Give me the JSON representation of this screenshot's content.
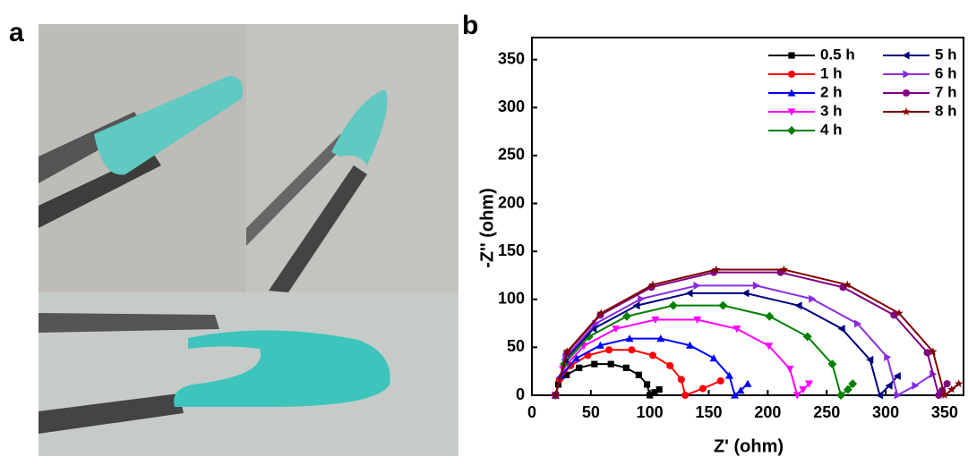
{
  "labels": [
    "a",
    "b"
  ],
  "chart_data": {
    "type": "line",
    "xlabel": "Z' (ohm)",
    "ylabel": "-Z'' (ohm)",
    "xlim": [
      0,
      366
    ],
    "ylim": [
      0,
      373
    ],
    "xticks": [
      0,
      50,
      100,
      150,
      200,
      250,
      300,
      350
    ],
    "yticks": [
      0,
      50,
      100,
      150,
      200,
      250,
      300,
      350
    ],
    "legend": "upper right",
    "series": [
      {
        "name": "0.5 h",
        "color": "#000000",
        "marker": "square",
        "x": [
          20,
          22.4,
          29.4,
          40,
          53,
          67,
          80,
          90.6,
          97.6,
          100,
          104,
          108
        ],
        "values": [
          0,
          11.3,
          21.2,
          28.6,
          32.5,
          32.5,
          28.6,
          21.2,
          11.3,
          0,
          3,
          6
        ]
      },
      {
        "name": "1 h",
        "color": "#ff0000",
        "marker": "circle",
        "x": [
          20,
          23.3,
          32.9,
          47.5,
          65.4,
          84.6,
          102.5,
          117.1,
          126.7,
          130,
          145,
          160
        ],
        "values": [
          0,
          16.4,
          30.9,
          41.6,
          47.3,
          47.3,
          41.6,
          30.9,
          16.4,
          0,
          7,
          15
        ]
      },
      {
        "name": "2 h",
        "color": "#0000ff",
        "marker": "triangle-up",
        "x": [
          20,
          24.6,
          37.8,
          58,
          82.8,
          109.2,
          134,
          154.2,
          167.4,
          172,
          177,
          183
        ],
        "values": [
          0,
          20.5,
          38.6,
          52,
          59.1,
          59.1,
          52,
          38.6,
          20.5,
          0,
          5,
          12
        ]
      },
      {
        "name": "3 h",
        "color": "#ff00ff",
        "marker": "triangle-down",
        "x": [
          20,
          26.2,
          44,
          71.3,
          104.7,
          140.3,
          173.8,
          201,
          218.8,
          225,
          230,
          235
        ],
        "values": [
          0,
          27.4,
          51.4,
          69.3,
          78.8,
          78.8,
          69.3,
          51.4,
          27.4,
          0,
          6,
          12
        ]
      },
      {
        "name": "4 h",
        "color": "#008000",
        "marker": "diamond",
        "x": [
          20,
          27.3,
          48.3,
          80.5,
          119.9,
          162.1,
          201.5,
          233.7,
          254.7,
          262,
          268,
          272
        ],
        "values": [
          0,
          32.5,
          61.1,
          82.3,
          93.6,
          93.6,
          82.3,
          61.1,
          32.5,
          0,
          6,
          12
        ]
      },
      {
        "name": "5 h",
        "color": "#000080",
        "marker": "triangle-left",
        "x": [
          20,
          28.3,
          52.2,
          88.8,
          133.6,
          181.4,
          226.3,
          262.8,
          286.8,
          295,
          303,
          310
        ],
        "values": [
          0,
          36.9,
          69.4,
          93.5,
          106.4,
          106.4,
          93.5,
          69.4,
          36.9,
          0,
          10,
          20
        ]
      },
      {
        "name": "6 h",
        "color": "#8a2be2",
        "marker": "triangle-right",
        "x": [
          20,
          28.7,
          53.9,
          92.5,
          139.8,
          190.2,
          237.5,
          276.1,
          301.3,
          310,
          325,
          340
        ],
        "values": [
          0,
          39.7,
          74.6,
          100.5,
          114.3,
          114.3,
          100.5,
          74.6,
          39.7,
          0,
          10,
          22
        ]
      },
      {
        "name": "7 h",
        "color": "#800080",
        "marker": "circle",
        "x": [
          20,
          29.8,
          58,
          101.3,
          154.2,
          210.8,
          263.8,
          307,
          335.3,
          345,
          348,
          352
        ],
        "values": [
          0,
          44.5,
          83.6,
          112.6,
          128.1,
          128.1,
          112.6,
          83.6,
          44.5,
          0,
          5,
          12
        ]
      },
      {
        "name": "8 h",
        "color": "#800000",
        "marker": "star",
        "x": [
          20,
          29.9,
          58.6,
          102.5,
          156.3,
          213.7,
          267.5,
          311.4,
          340.1,
          350,
          356,
          362
        ],
        "values": [
          0,
          45.5,
          85.5,
          115.2,
          131,
          131,
          115.2,
          85.5,
          45.5,
          0,
          6,
          12
        ]
      }
    ]
  }
}
